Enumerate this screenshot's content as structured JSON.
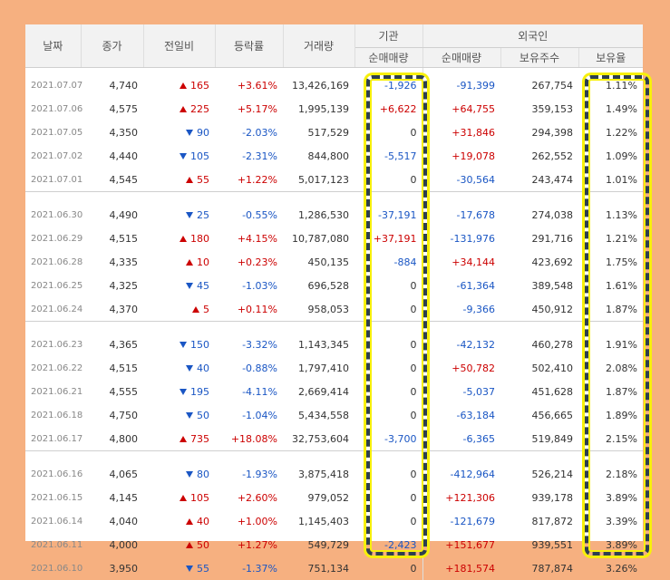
{
  "header": {
    "date": "날짜",
    "close": "종가",
    "change": "전일비",
    "rate": "등락률",
    "volume": "거래량",
    "institution": "기관",
    "foreign": "외국인",
    "inst_net": "순매매량",
    "for_net": "순매매량",
    "holdings": "보유주수",
    "hold_ratio": "보유율"
  },
  "groups": [
    [
      {
        "date": "2021.07.07",
        "close": "4,740",
        "change": "165",
        "dir": "up",
        "rate": "+3.61%",
        "volume": "13,426,169",
        "inst": "-1,926",
        "foreign_net": "-91,399",
        "holdings": "267,754",
        "ratio": "1.11%"
      },
      {
        "date": "2021.07.06",
        "close": "4,575",
        "change": "225",
        "dir": "up",
        "rate": "+5.17%",
        "volume": "1,995,139",
        "inst": "+6,622",
        "foreign_net": "+64,755",
        "holdings": "359,153",
        "ratio": "1.49%"
      },
      {
        "date": "2021.07.05",
        "close": "4,350",
        "change": "90",
        "dir": "down",
        "rate": "-2.03%",
        "volume": "517,529",
        "inst": "0",
        "foreign_net": "+31,846",
        "holdings": "294,398",
        "ratio": "1.22%"
      },
      {
        "date": "2021.07.02",
        "close": "4,440",
        "change": "105",
        "dir": "down",
        "rate": "-2.31%",
        "volume": "844,800",
        "inst": "-5,517",
        "foreign_net": "+19,078",
        "holdings": "262,552",
        "ratio": "1.09%"
      },
      {
        "date": "2021.07.01",
        "close": "4,545",
        "change": "55",
        "dir": "up",
        "rate": "+1.22%",
        "volume": "5,017,123",
        "inst": "0",
        "foreign_net": "-30,564",
        "holdings": "243,474",
        "ratio": "1.01%"
      }
    ],
    [
      {
        "date": "2021.06.30",
        "close": "4,490",
        "change": "25",
        "dir": "down",
        "rate": "-0.55%",
        "volume": "1,286,530",
        "inst": "-37,191",
        "foreign_net": "-17,678",
        "holdings": "274,038",
        "ratio": "1.13%"
      },
      {
        "date": "2021.06.29",
        "close": "4,515",
        "change": "180",
        "dir": "up",
        "rate": "+4.15%",
        "volume": "10,787,080",
        "inst": "+37,191",
        "foreign_net": "-131,976",
        "holdings": "291,716",
        "ratio": "1.21%"
      },
      {
        "date": "2021.06.28",
        "close": "4,335",
        "change": "10",
        "dir": "up",
        "rate": "+0.23%",
        "volume": "450,135",
        "inst": "-884",
        "foreign_net": "+34,144",
        "holdings": "423,692",
        "ratio": "1.75%"
      },
      {
        "date": "2021.06.25",
        "close": "4,325",
        "change": "45",
        "dir": "down",
        "rate": "-1.03%",
        "volume": "696,528",
        "inst": "0",
        "foreign_net": "-61,364",
        "holdings": "389,548",
        "ratio": "1.61%"
      },
      {
        "date": "2021.06.24",
        "close": "4,370",
        "change": "5",
        "dir": "up",
        "rate": "+0.11%",
        "volume": "958,053",
        "inst": "0",
        "foreign_net": "-9,366",
        "holdings": "450,912",
        "ratio": "1.87%"
      }
    ],
    [
      {
        "date": "2021.06.23",
        "close": "4,365",
        "change": "150",
        "dir": "down",
        "rate": "-3.32%",
        "volume": "1,143,345",
        "inst": "0",
        "foreign_net": "-42,132",
        "holdings": "460,278",
        "ratio": "1.91%"
      },
      {
        "date": "2021.06.22",
        "close": "4,515",
        "change": "40",
        "dir": "down",
        "rate": "-0.88%",
        "volume": "1,797,410",
        "inst": "0",
        "foreign_net": "+50,782",
        "holdings": "502,410",
        "ratio": "2.08%"
      },
      {
        "date": "2021.06.21",
        "close": "4,555",
        "change": "195",
        "dir": "down",
        "rate": "-4.11%",
        "volume": "2,669,414",
        "inst": "0",
        "foreign_net": "-5,037",
        "holdings": "451,628",
        "ratio": "1.87%"
      },
      {
        "date": "2021.06.18",
        "close": "4,750",
        "change": "50",
        "dir": "down",
        "rate": "-1.04%",
        "volume": "5,434,558",
        "inst": "0",
        "foreign_net": "-63,184",
        "holdings": "456,665",
        "ratio": "1.89%"
      },
      {
        "date": "2021.06.17",
        "close": "4,800",
        "change": "735",
        "dir": "up",
        "rate": "+18.08%",
        "volume": "32,753,604",
        "inst": "-3,700",
        "foreign_net": "-6,365",
        "holdings": "519,849",
        "ratio": "2.15%"
      }
    ],
    [
      {
        "date": "2021.06.16",
        "close": "4,065",
        "change": "80",
        "dir": "down",
        "rate": "-1.93%",
        "volume": "3,875,418",
        "inst": "0",
        "foreign_net": "-412,964",
        "holdings": "526,214",
        "ratio": "2.18%"
      },
      {
        "date": "2021.06.15",
        "close": "4,145",
        "change": "105",
        "dir": "up",
        "rate": "+2.60%",
        "volume": "979,052",
        "inst": "0",
        "foreign_net": "+121,306",
        "holdings": "939,178",
        "ratio": "3.89%"
      },
      {
        "date": "2021.06.14",
        "close": "4,040",
        "change": "40",
        "dir": "up",
        "rate": "+1.00%",
        "volume": "1,145,403",
        "inst": "0",
        "foreign_net": "-121,679",
        "holdings": "817,872",
        "ratio": "3.39%"
      },
      {
        "date": "2021.06.11",
        "close": "4,000",
        "change": "50",
        "dir": "up",
        "rate": "+1.27%",
        "volume": "549,729",
        "inst": "-2,423",
        "foreign_net": "+151,677",
        "holdings": "939,551",
        "ratio": "3.89%"
      },
      {
        "date": "2021.06.10",
        "close": "3,950",
        "change": "55",
        "dir": "down",
        "rate": "-1.37%",
        "volume": "751,134",
        "inst": "0",
        "foreign_net": "+181,574",
        "holdings": "787,874",
        "ratio": "3.26%"
      }
    ]
  ],
  "colors": {
    "up": "#cc0000",
    "down": "#1a56c4",
    "highlight_border": "#2d3f4f",
    "highlight_glow": "#f7f00a",
    "page_bg": "#f6b080"
  }
}
